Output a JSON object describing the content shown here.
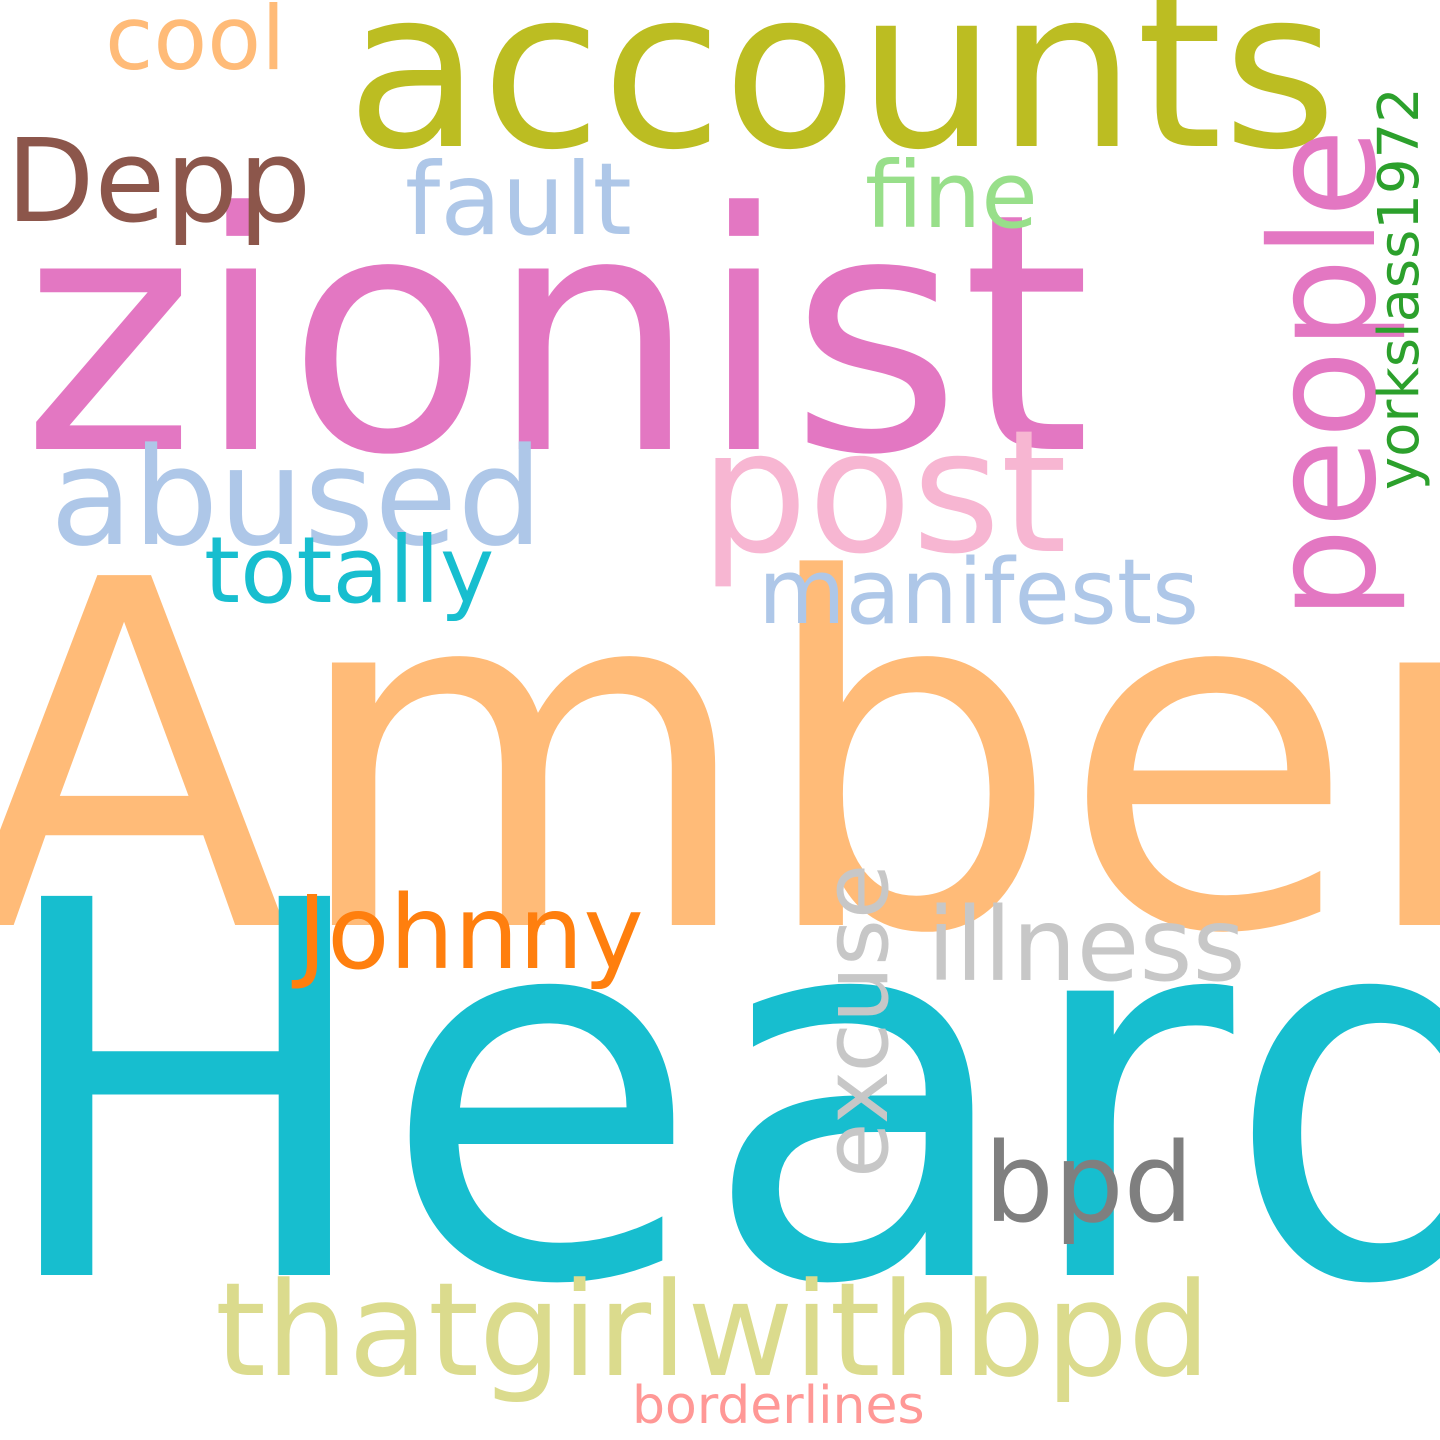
{
  "words": {
    "amber": {
      "text": "Amber",
      "color": "#ffbb78"
    },
    "heard": {
      "text": "Heard",
      "color": "#17becf"
    },
    "zionist": {
      "text": "zionist",
      "color": "#e377c2"
    },
    "accounts": {
      "text": "accounts",
      "color": "#bcbd22"
    },
    "post": {
      "text": "post",
      "color": "#f7b6d2"
    },
    "abused": {
      "text": "abused",
      "color": "#aec7e8"
    },
    "thatgirlwithbpd": {
      "text": "thatgirlwithbpd",
      "color": "#dbdb8d"
    },
    "johnny": {
      "text": "Johnny",
      "color": "#ff7f0e"
    },
    "illness": {
      "text": "illness",
      "color": "#c7c7c7"
    },
    "bpd": {
      "text": "bpd",
      "color": "#7f7f7f"
    },
    "manifests": {
      "text": "manifests",
      "color": "#aec7e8"
    },
    "totally": {
      "text": "totally",
      "color": "#17becf"
    },
    "fault": {
      "text": "fault",
      "color": "#aec7e8"
    },
    "fine": {
      "text": "fine",
      "color": "#98df8a"
    },
    "depp": {
      "text": "Depp",
      "color": "#8c564b"
    },
    "cool": {
      "text": "cool",
      "color": "#ffbb78"
    },
    "borderlines": {
      "text": "borderlines",
      "color": "#ff9896"
    },
    "people": {
      "text": "people",
      "color": "#e377c2"
    },
    "excuse": {
      "text": "excuse",
      "color": "#c7c7c7"
    },
    "yorkslass1972": {
      "text": "yorkslass1972",
      "color": "#2ca02c"
    }
  }
}
